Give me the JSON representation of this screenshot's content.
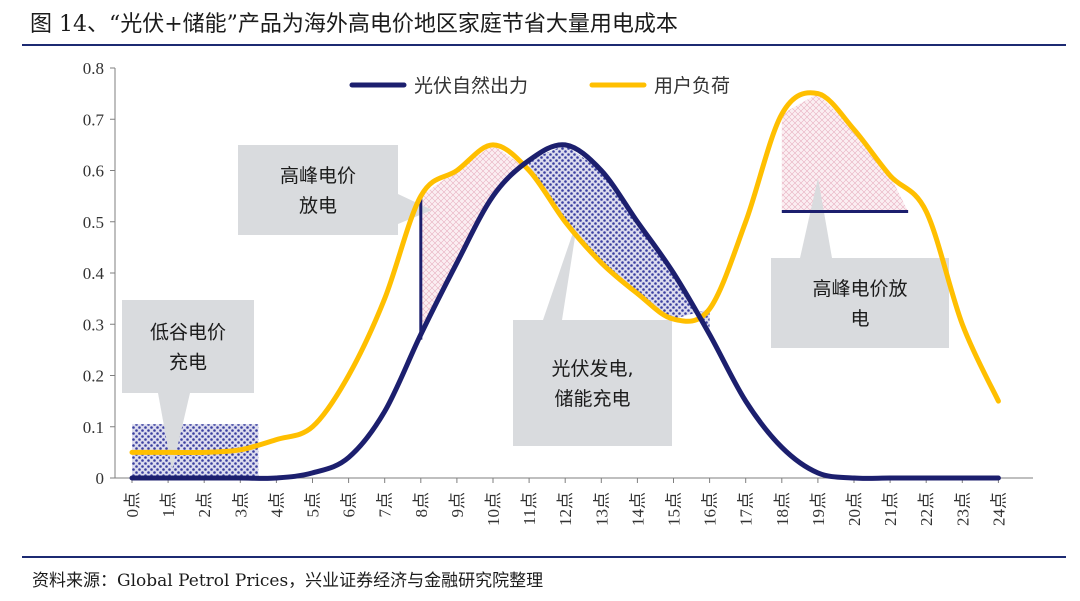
{
  "figure": {
    "title": "图 14、“光伏+储能”产品为海外高电价地区家庭节省大量用电成本",
    "source": "资料来源：Global Petrol Prices，兴业证券经济与金融研究院整理"
  },
  "chart_data": {
    "type": "line",
    "title": "图 14、“光伏+储能”产品为海外高电价地区家庭节省大量用电成本",
    "xlabel": "",
    "ylabel": "",
    "ylim": [
      0,
      0.8
    ],
    "yticks": [
      0,
      0.1,
      0.2,
      0.3,
      0.4,
      0.5,
      0.6,
      0.7,
      0.8
    ],
    "ytick_labels": [
      "0",
      "0.1",
      "0.2",
      "0.3",
      "0.4",
      "0.5",
      "0.6",
      "0.7",
      "0.8"
    ],
    "categories": [
      "0点",
      "1点",
      "2点",
      "3点",
      "4点",
      "5点",
      "6点",
      "7点",
      "8点",
      "9点",
      "10点",
      "11点",
      "12点",
      "13点",
      "14点",
      "15点",
      "16点",
      "17点",
      "18点",
      "19点",
      "20点",
      "21点",
      "22点",
      "23点",
      "24点"
    ],
    "legend_position": "top-center",
    "series": [
      {
        "name": "光伏自然出力",
        "color": "#1c1f6e",
        "values": [
          0,
          0,
          0,
          0,
          0,
          0.01,
          0.04,
          0.13,
          0.28,
          0.42,
          0.55,
          0.62,
          0.65,
          0.6,
          0.5,
          0.4,
          0.28,
          0.15,
          0.06,
          0.01,
          0,
          0,
          0,
          0,
          0
        ]
      },
      {
        "name": "用户负荷",
        "color": "#ffbf00",
        "values": [
          0.05,
          0.05,
          0.05,
          0.055,
          0.075,
          0.1,
          0.2,
          0.35,
          0.55,
          0.6,
          0.65,
          0.6,
          0.5,
          0.42,
          0.36,
          0.31,
          0.33,
          0.5,
          0.71,
          0.75,
          0.68,
          0.59,
          0.52,
          0.3,
          0.15
        ]
      }
    ],
    "annotations": [
      {
        "id": "valley",
        "text_lines": [
          "低谷电价",
          "充电"
        ],
        "x": 1.5,
        "y": 0.31
      },
      {
        "id": "peak-am",
        "text_lines": [
          "高峰电价",
          "放电"
        ],
        "x": 5.8,
        "y": 0.56
      },
      {
        "id": "pv",
        "text_lines": [
          "光伏发电,",
          "储能充电"
        ],
        "x": 13.2,
        "y": 0.16
      },
      {
        "id": "peak-pm",
        "text_lines": [
          "高峰电价放",
          "电"
        ],
        "x": 20.8,
        "y": 0.35
      }
    ],
    "ref_lines": [
      {
        "name": "morning-discharge-bar",
        "x": 8,
        "y_from": 0.27,
        "y_to": 0.55
      },
      {
        "name": "evening-discharge-level",
        "x_from": 18,
        "x_to": 21.5,
        "y": 0.52
      }
    ]
  }
}
